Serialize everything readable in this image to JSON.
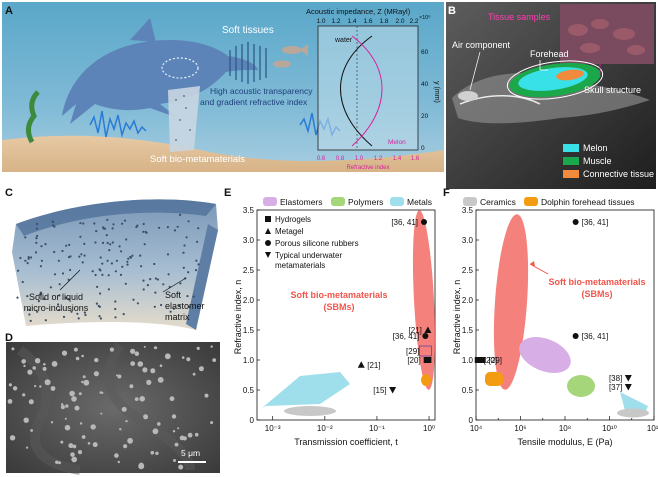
{
  "panels": {
    "a": "A",
    "b": "B",
    "c": "C",
    "d": "D",
    "e": "E",
    "f": "F"
  },
  "panel_a": {
    "soft_tissues": "Soft tissues",
    "transparency_line1": "High acoustic transparency",
    "transparency_line2": "and gradient refractive index",
    "sbm_label": "Soft bio-metamaterials",
    "inset": {
      "top_title": "Acoustic impedance, Z (MRayl)",
      "top_ticks": [
        "1.0",
        "1.2",
        "1.4",
        "1.6",
        "1.8",
        "2.0",
        "2.2"
      ],
      "top_exp": "×10⁶",
      "water": "water",
      "y_label": "y (mm)",
      "y_ticks": [
        "0",
        "20",
        "40",
        "60"
      ],
      "bottom_ticks": [
        "0.6",
        "0.8",
        "1.0",
        "1.2",
        "1.4",
        "1.6"
      ],
      "bottom_title": "Refractive index",
      "melon": "Melon"
    }
  },
  "panel_b": {
    "tissue_samples": "Tissue samples",
    "air_component": "Air component",
    "forehead": "Forehead",
    "skull_structure": "Skull structure",
    "legend": [
      {
        "label": "Melon",
        "color": "#38e0e8"
      },
      {
        "label": "Muscle",
        "color": "#1aa84a"
      },
      {
        "label": "Connective tissue",
        "color": "#f08a3c"
      }
    ]
  },
  "panel_c": {
    "inclusions_line1": "Solid or liquid",
    "inclusions_line2": "micro-inclusions",
    "matrix_line1": "Soft",
    "matrix_line2": "elastomer",
    "matrix_line3": "matrix"
  },
  "panel_d": {
    "scale_bar": "5 μm"
  },
  "top_legend": [
    {
      "label": "Elastomers",
      "color": "#d7aee6"
    },
    {
      "label": "Polymers",
      "color": "#a6d67a"
    },
    {
      "label": "Metals",
      "color": "#9fdfeb"
    },
    {
      "label": "Ceramics",
      "color": "#c8c8c8"
    },
    {
      "label": "Dolphin forehead tissues",
      "color": "#f39c12"
    }
  ],
  "marker_legend": [
    {
      "label": "Hydrogels",
      "marker": "square"
    },
    {
      "label": "Metagel",
      "marker": "triangle-up"
    },
    {
      "label": "Porous silicone rubbers",
      "marker": "circle"
    },
    {
      "label_line1": "Typical underwater",
      "label_line2": "metamaterials",
      "marker": "triangle-down"
    }
  ],
  "chart_data": [
    {
      "type": "scatter",
      "panel": "E",
      "xlabel": "Transmission coefficient, t",
      "ylabel": "Refractive index, n",
      "x_scale": "log",
      "xlim": [
        0.0005,
        1.3
      ],
      "ylim": [
        0,
        3.5
      ],
      "x_ticks": [
        "10⁻³",
        "10⁻²",
        "10⁻¹",
        "10⁰"
      ],
      "y_ticks": [
        "0",
        "0.5",
        "1.0",
        "1.5",
        "2.0",
        "2.5",
        "3.0",
        "3.5"
      ],
      "sbm_line1": "Soft bio-metamaterials",
      "sbm_line2": "(SBMs)",
      "points": [
        {
          "x": 0.8,
          "y": 3.3,
          "marker": "circle",
          "label": "[36, 41]"
        },
        {
          "x": 0.85,
          "y": 1.4,
          "marker": "circle",
          "label": "[36, 41]"
        },
        {
          "x": 0.95,
          "y": 1.5,
          "marker": "triangle-up",
          "label": "[21]"
        },
        {
          "x": 0.05,
          "y": 0.92,
          "marker": "triangle-up",
          "label": "[21]"
        },
        {
          "x": 0.2,
          "y": 0.5,
          "marker": "triangle-down",
          "label": "[15]"
        },
        {
          "x": 0.85,
          "y": 1.15,
          "marker": "box",
          "label": "[29]"
        },
        {
          "x": 0.9,
          "y": 1.0,
          "marker": "square",
          "label": "[20]"
        },
        {
          "x": 0.97,
          "y": 1.0,
          "marker": "square",
          "label": ""
        }
      ]
    },
    {
      "type": "scatter",
      "panel": "F",
      "xlabel": "Tensile modulus, E (Pa)",
      "ylabel": "Refractive index, n",
      "x_scale": "log",
      "xlim": [
        10000,
        1000000000000
      ],
      "ylim": [
        0,
        3.5
      ],
      "x_ticks": [
        "10⁴",
        "10⁶",
        "10⁸",
        "10¹⁰",
        "10¹²"
      ],
      "y_ticks": [
        "0",
        "0.5",
        "1.0",
        "1.5",
        "2.0",
        "2.5",
        "3.0",
        "3.5"
      ],
      "sbm_line1": "Soft bio-metamaterials",
      "sbm_line2": "(SBMs)",
      "points": [
        {
          "x": 300000000,
          "y": 3.3,
          "marker": "circle",
          "label": "[36, 41]"
        },
        {
          "x": 300000000,
          "y": 1.4,
          "marker": "circle",
          "label": "[36, 41]"
        },
        {
          "x": 12000,
          "y": 1.0,
          "marker": "square",
          "label": "[20]"
        },
        {
          "x": 20000,
          "y": 1.0,
          "marker": "square",
          "label": "[29]"
        },
        {
          "x": 70000000000,
          "y": 0.7,
          "marker": "triangle-down",
          "label": "[38]"
        },
        {
          "x": 70000000000,
          "y": 0.55,
          "marker": "triangle-down",
          "label": "[37]"
        }
      ]
    }
  ]
}
